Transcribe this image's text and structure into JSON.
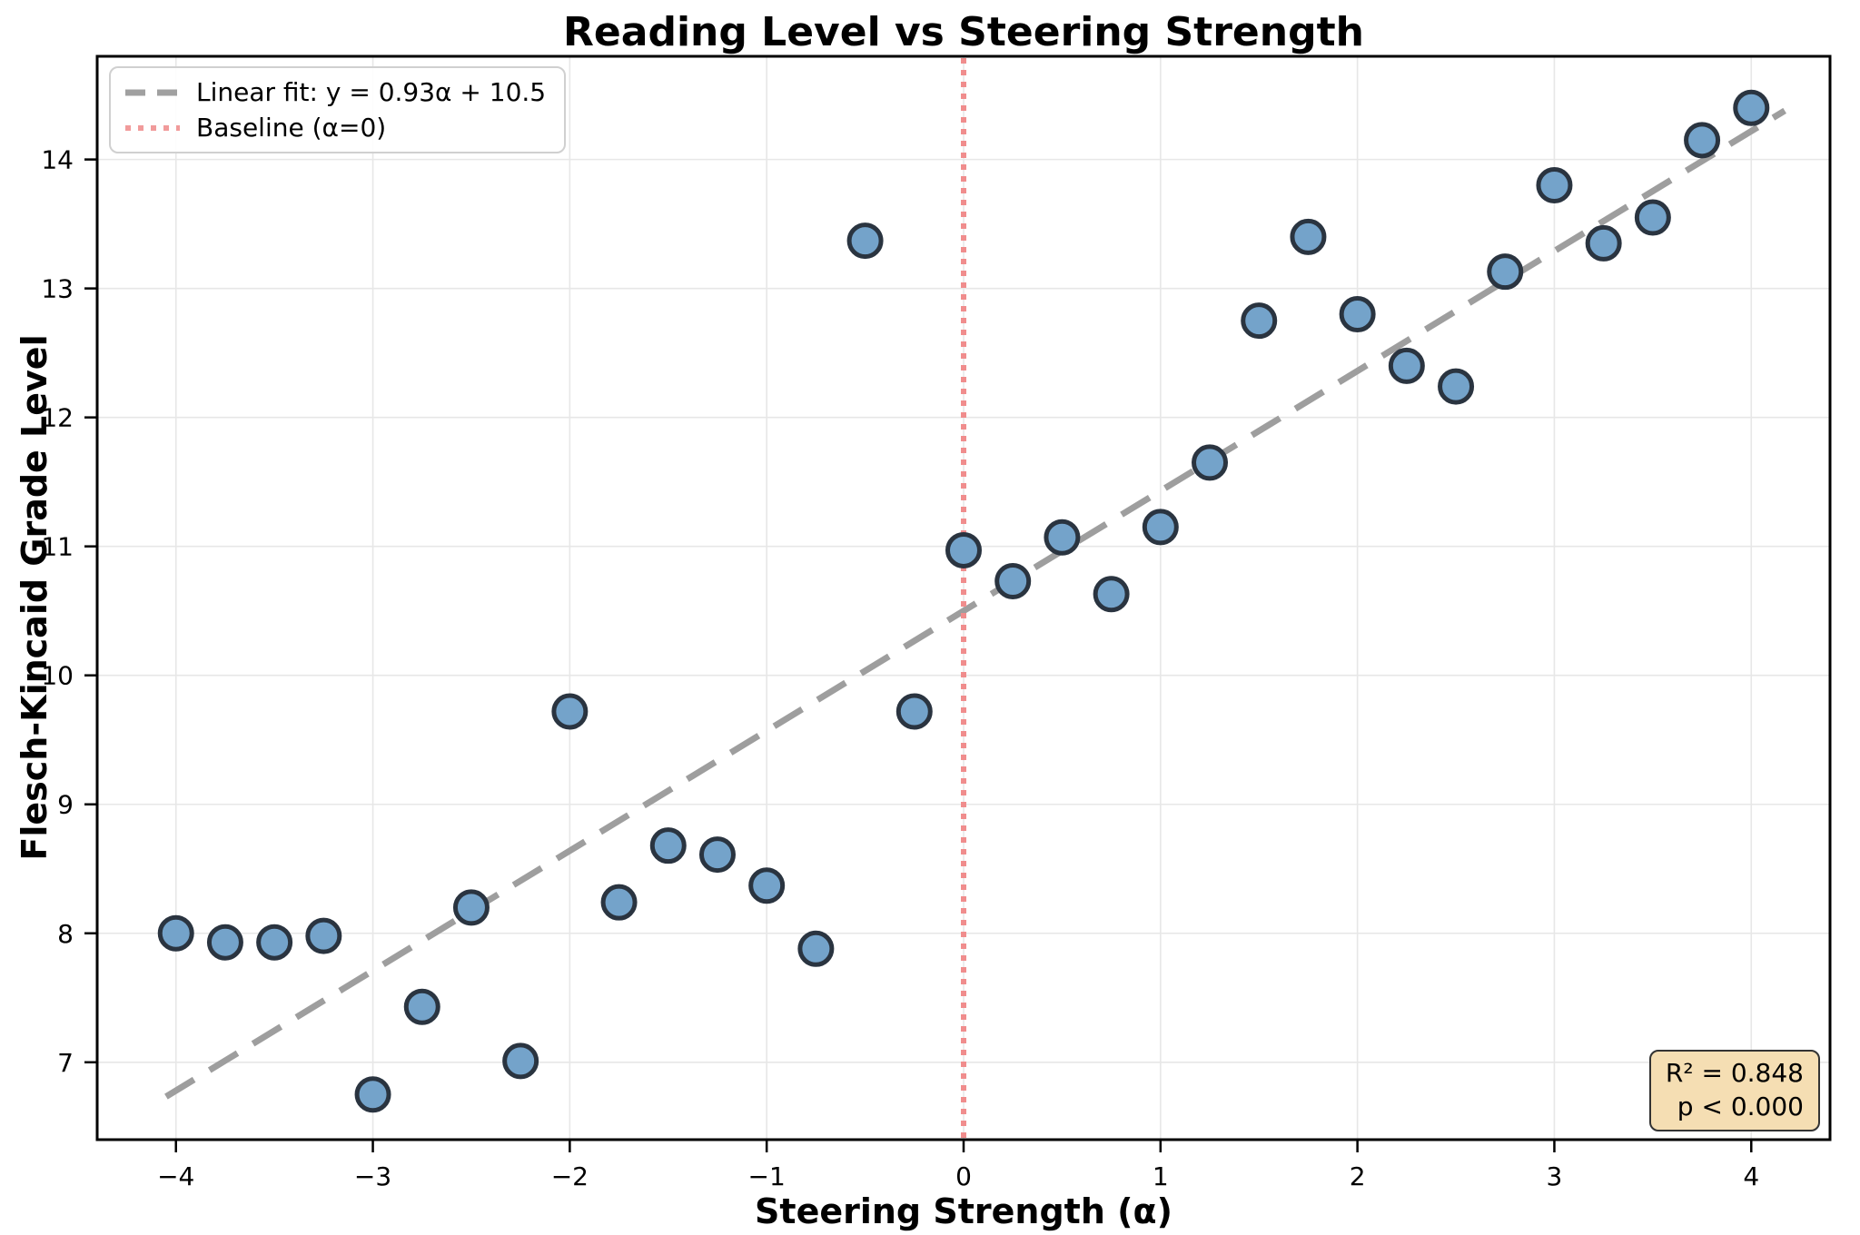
{
  "legend": {
    "position": "upper-left",
    "items": [
      {
        "label": "Linear fit: y = 0.93α + 10.5",
        "style": "dashed",
        "color": "#a0a0a0"
      },
      {
        "label": "Baseline (α=0)",
        "style": "dotted",
        "color": "#f19b9b"
      }
    ]
  },
  "annotation": {
    "lines": [
      "R² = 0.848",
      "p < 0.000"
    ],
    "background": "#f5deb3",
    "border_color": "#333333",
    "position": "lower-right"
  },
  "chart_data": {
    "type": "scatter",
    "title": "Reading Level vs Steering Strength",
    "xlabel": "Steering Strength (α)",
    "ylabel": "Flesch-Kincaid Grade Level",
    "x": [
      -4.0,
      -3.75,
      -3.5,
      -3.25,
      -3.0,
      -2.75,
      -2.5,
      -2.25,
      -2.0,
      -1.75,
      -1.5,
      -1.25,
      -1.0,
      -0.75,
      -0.5,
      -0.25,
      0.0,
      0.25,
      0.5,
      0.75,
      1.0,
      1.25,
      1.5,
      1.75,
      2.0,
      2.25,
      2.5,
      2.75,
      3.0,
      3.25,
      3.5,
      3.75,
      4.0
    ],
    "y": [
      8.0,
      7.93,
      7.93,
      7.98,
      6.75,
      7.43,
      8.2,
      7.01,
      9.72,
      8.24,
      8.68,
      8.61,
      8.37,
      7.88,
      13.37,
      9.72,
      10.97,
      10.73,
      11.07,
      10.63,
      11.15,
      11.65,
      12.75,
      13.4,
      12.8,
      12.4,
      12.24,
      13.13,
      13.8,
      13.35,
      13.55,
      14.15,
      14.4
    ],
    "xlim": [
      -4.4,
      4.4
    ],
    "ylim": [
      6.4,
      14.8
    ],
    "xticks": [
      -4,
      -3,
      -2,
      -1,
      0,
      1,
      2,
      3,
      4
    ],
    "xtick_labels": [
      "−4",
      "−3",
      "−2",
      "−1",
      "0",
      "1",
      "2",
      "3",
      "4"
    ],
    "yticks": [
      7,
      8,
      9,
      10,
      11,
      12,
      13,
      14
    ],
    "ytick_labels": [
      "7",
      "8",
      "9",
      "10",
      "11",
      "12",
      "13",
      "14"
    ],
    "grid": true,
    "grid_color": "#e7e7e7",
    "fit_line": {
      "slope": 0.93,
      "intercept": 10.5,
      "x_range": [
        -4.05,
        4.17
      ],
      "color": "#9e9e9e",
      "width": 7,
      "dash": "36 20"
    },
    "baseline": {
      "x": 0,
      "color": "#f08d8d",
      "width": 6,
      "dash": "6 7"
    },
    "marker": {
      "fill": "#74a3ca",
      "edge": "#2a3440",
      "radius": 17.5,
      "edge_width": 5
    },
    "spine_color": "#000000",
    "legend_entries": [
      "Linear fit: y = 0.93α + 10.5",
      "Baseline (α=0)"
    ],
    "stats_annotation": [
      "R² = 0.848",
      "p < 0.000"
    ]
  }
}
